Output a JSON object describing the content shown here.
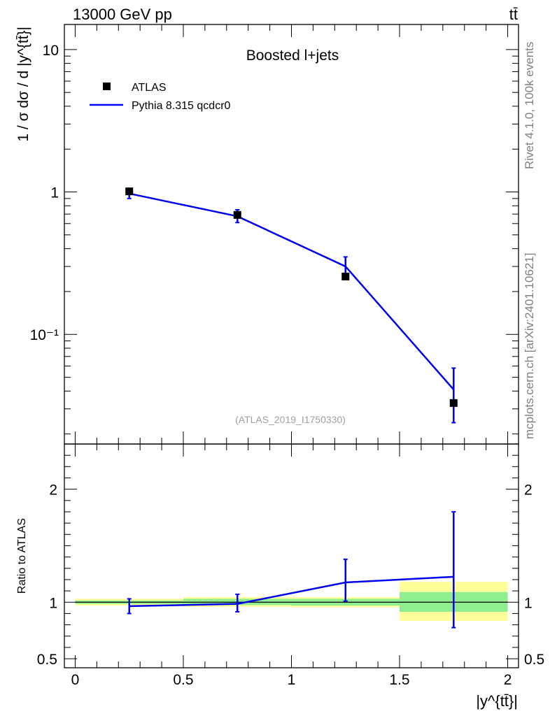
{
  "header": {
    "energy_label": "13000 GeV pp",
    "process_label": "tt̄"
  },
  "side": {
    "rivet_label": "Rivet 4.1.0,  100k events",
    "mcplots_label": "mcplots.cern.ch [arXiv:2401.10621]"
  },
  "colors": {
    "data": "#000000",
    "mc": "#0000ee",
    "band_inner": "#90ee90",
    "band_outer": "#ffff99",
    "watermark": "#808080"
  },
  "chart_data": [
    {
      "type": "scatter",
      "panel": "main",
      "title": "Boosted l+jets",
      "analysis_label": "(ATLAS_2019_I1750330)",
      "ylabel": "1 / σ dσ / d |y^{tt̄}|",
      "yscale": "log",
      "ylim": [
        0.017,
        15
      ],
      "xlim": [
        -0.05,
        2.05
      ],
      "yticks": [
        {
          "value": 10,
          "label": "10"
        },
        {
          "value": 1,
          "label": "1"
        },
        {
          "value": 0.1,
          "label": "10⁻¹"
        }
      ],
      "legend": [
        "ATLAS",
        "Pythia 8.315 qcdcr0"
      ],
      "legend_position": "top-left",
      "series": [
        {
          "name": "ATLAS",
          "marker": "square",
          "x": [
            0.25,
            0.75,
            1.25,
            1.75
          ],
          "y": [
            1.01,
            0.69,
            0.255,
            0.033
          ]
        },
        {
          "name": "Pythia 8.315 qcdcr0",
          "style": "line",
          "x": [
            0.25,
            0.75,
            1.25,
            1.75
          ],
          "y": [
            0.975,
            0.675,
            0.3,
            0.041
          ],
          "yerr_low": [
            0.9,
            0.61,
            0.265,
            0.024
          ],
          "yerr_high": [
            1.05,
            0.75,
            0.35,
            0.058
          ]
        }
      ]
    },
    {
      "type": "line",
      "panel": "ratio",
      "ylabel": "Ratio to ATLAS",
      "xlabel": "|y^{tt̄}|",
      "ylim": [
        0.42,
        2.4
      ],
      "xlim": [
        -0.05,
        2.05
      ],
      "xticks": [
        {
          "value": 0,
          "label": "0"
        },
        {
          "value": 0.5,
          "label": "0.5"
        },
        {
          "value": 1,
          "label": "1"
        },
        {
          "value": 1.5,
          "label": "1.5"
        },
        {
          "value": 2,
          "label": "2"
        }
      ],
      "yticks": [
        {
          "value": 2,
          "label": "2"
        },
        {
          "value": 1,
          "label": "1"
        },
        {
          "value": 0.5,
          "label": "0.5"
        }
      ],
      "reference": 1,
      "bands": [
        {
          "x0": 0,
          "x1": 0.5,
          "inner": [
            0.985,
            1.015
          ],
          "outer": [
            0.97,
            1.03
          ]
        },
        {
          "x0": 0.5,
          "x1": 1.0,
          "inner": [
            0.975,
            1.03
          ],
          "outer": [
            0.96,
            1.045
          ]
        },
        {
          "x0": 1.0,
          "x1": 1.5,
          "inner": [
            0.97,
            1.03
          ],
          "outer": [
            0.955,
            1.045
          ]
        },
        {
          "x0": 1.5,
          "x1": 2.0,
          "inner": [
            0.915,
            1.09
          ],
          "outer": [
            0.835,
            1.18
          ]
        }
      ],
      "series": [
        {
          "name": "Pythia 8.315 qcdcr0",
          "x": [
            0.25,
            0.75,
            1.25,
            1.75
          ],
          "y": [
            0.965,
            0.985,
            1.175,
            1.225
          ],
          "yerr_low": [
            0.9,
            0.915,
            1.01,
            0.775
          ],
          "yerr_high": [
            1.03,
            1.07,
            1.38,
            1.8
          ]
        }
      ]
    }
  ]
}
